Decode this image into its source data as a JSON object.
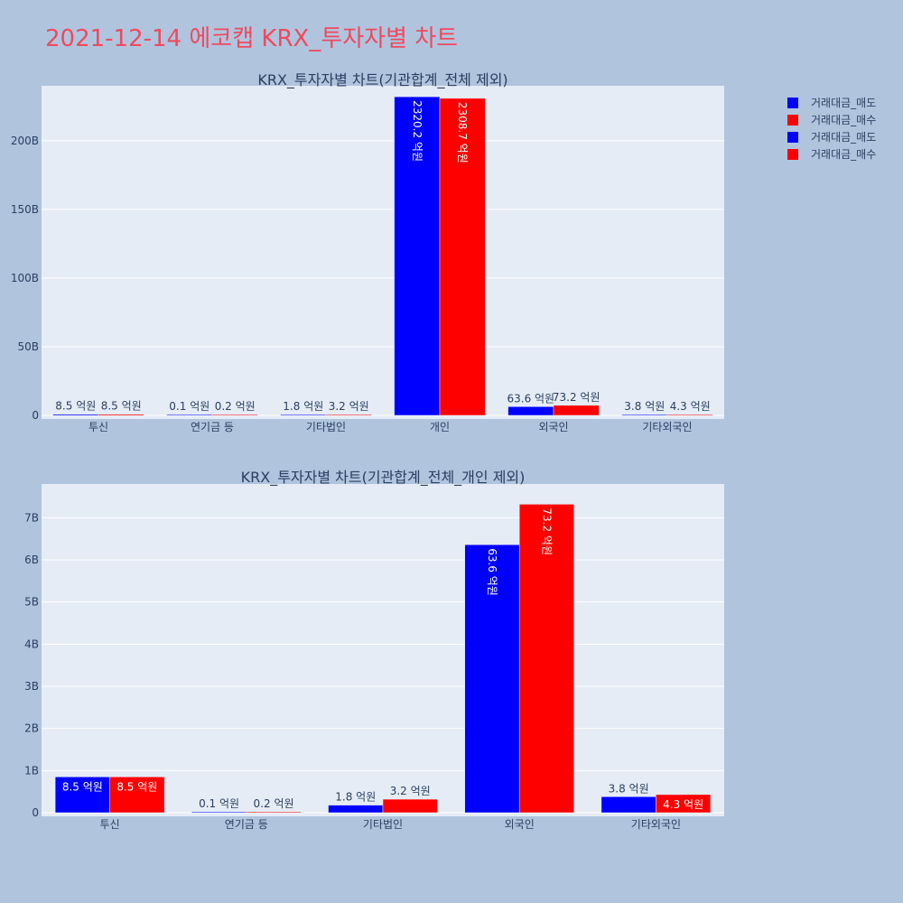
{
  "page": {
    "title": "2021-12-14 에코캡 KRX_투자자별 차트",
    "background": "#b0c4de"
  },
  "legend": [
    {
      "name": "거래대금_매도",
      "color": "#0000ff"
    },
    {
      "name": "거래대금_매수",
      "color": "#ff0000"
    },
    {
      "name": "거래대금_매도",
      "color": "#0000ff"
    },
    {
      "name": "거래대금_매수",
      "color": "#ff0000"
    }
  ],
  "chart_data": [
    {
      "type": "bar",
      "title": "KRX_투자자별 차트(기관합계_전체 제외)",
      "categories": [
        "투신",
        "연기금 등",
        "기타법인",
        "개인",
        "외국인",
        "기타외국인"
      ],
      "series": [
        {
          "name": "거래대금_매도",
          "color": "#0000ff",
          "values": [
            0.85,
            0.01,
            0.18,
            232.02,
            6.36,
            0.38
          ],
          "labels": [
            "8.5 억원",
            "0.1 억원",
            "1.8 억원",
            "2320.2 억원",
            "63.6 억원",
            "3.8 억원"
          ]
        },
        {
          "name": "거래대금_매수",
          "color": "#ff0000",
          "values": [
            0.85,
            0.02,
            0.32,
            230.87,
            7.32,
            0.43
          ],
          "labels": [
            "8.5 억원",
            "0.2 억원",
            "3.2 억원",
            "2308.7 억원",
            "73.2 억원",
            "4.3 억원"
          ]
        }
      ],
      "ylim": [
        0,
        240
      ],
      "yticks": [
        0,
        50,
        100,
        150,
        200
      ],
      "ytick_labels": [
        "0",
        "50B",
        "100B",
        "150B",
        "200B"
      ],
      "grid": true
    },
    {
      "type": "bar",
      "title": "KRX_투자자별 차트(기관합계_전체_개인 제외)",
      "categories": [
        "투신",
        "연기금 등",
        "기타법인",
        "외국인",
        "기타외국인"
      ],
      "series": [
        {
          "name": "거래대금_매도",
          "color": "#0000ff",
          "values": [
            0.85,
            0.01,
            0.18,
            6.36,
            0.38
          ],
          "labels": [
            "8.5 억원",
            "0.1 억원",
            "1.8 억원",
            "63.6 억원",
            "3.8 억원"
          ]
        },
        {
          "name": "거래대금_매수",
          "color": "#ff0000",
          "values": [
            0.85,
            0.02,
            0.32,
            7.32,
            0.43
          ],
          "labels": [
            "8.5 억원",
            "0.2 억원",
            "3.2 억원",
            "73.2 억원",
            "4.3 억원"
          ]
        }
      ],
      "ylim": [
        0,
        7.8
      ],
      "yticks": [
        0,
        1,
        2,
        3,
        4,
        5,
        6,
        7
      ],
      "ytick_labels": [
        "0",
        "1B",
        "2B",
        "3B",
        "4B",
        "5B",
        "6B",
        "7B"
      ],
      "grid": true
    }
  ]
}
